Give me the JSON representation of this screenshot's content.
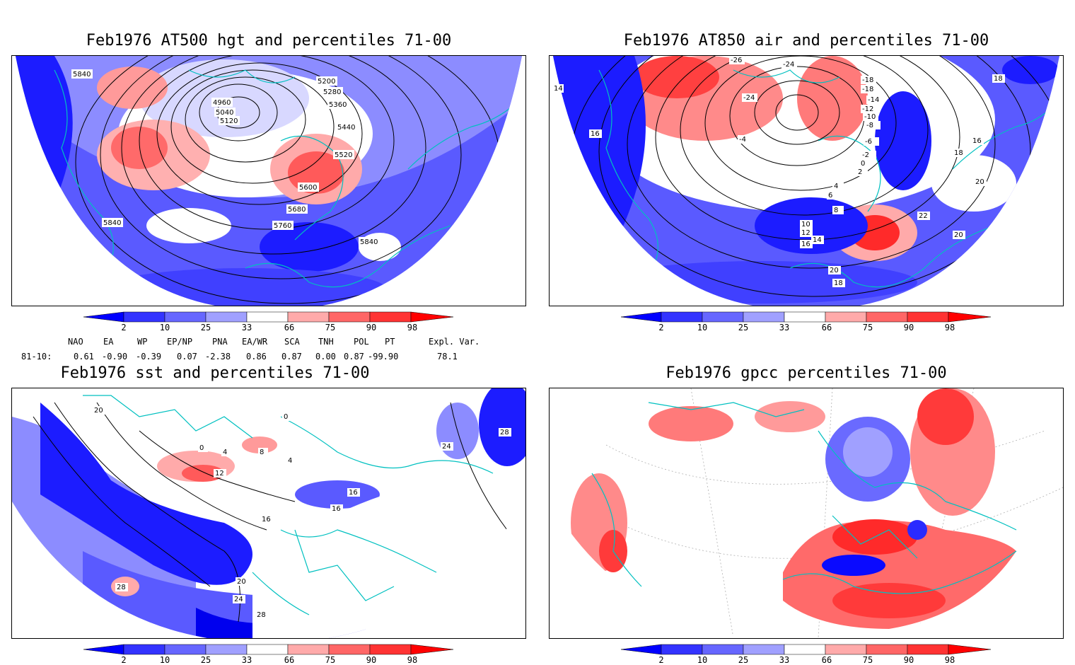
{
  "panels": [
    {
      "id": "tl",
      "title": "Feb1976 AT500 hgt and percentiles 71-00",
      "contour_labels": [
        "5840",
        "4960",
        "5040",
        "5120",
        "5200",
        "5280",
        "5360",
        "5440",
        "5520",
        "5600",
        "5680",
        "5760",
        "5840",
        "5840",
        "5840"
      ]
    },
    {
      "id": "tr",
      "title": "Feb1976 AT850 air and percentiles 71-00",
      "contour_labels": [
        "-26",
        "-24",
        "-24",
        "-18",
        "-18",
        "-14",
        "-12",
        "-10",
        "-8",
        "-6",
        "-4",
        "-2",
        "0",
        "2",
        "4",
        "6",
        "8",
        "10",
        "12",
        "14",
        "16",
        "18",
        "18",
        "16",
        "20",
        "22",
        "20",
        "20",
        "18",
        "14",
        "16"
      ]
    },
    {
      "id": "bl",
      "title": "Feb1976 sst and percentiles 71-00",
      "contour_labels": [
        "20",
        "0",
        "4",
        "8",
        "12",
        "16",
        "16",
        "16",
        "20",
        "24",
        "28",
        "28",
        "28",
        "24",
        "4",
        "0"
      ]
    },
    {
      "id": "br",
      "title": "Feb1976 gpcc percentiles 71-00",
      "contour_labels": []
    }
  ],
  "colorbar": {
    "labels": [
      "2",
      "10",
      "25",
      "33",
      "66",
      "75",
      "90",
      "98"
    ],
    "colors": [
      "#0000ff",
      "#3333ff",
      "#6666ff",
      "#a0a0ff",
      "#ffffff",
      "#ffaaaa",
      "#ff6666",
      "#ff3333",
      "#ff0000"
    ]
  },
  "indices": {
    "headers": [
      "NAO",
      "EA",
      "WP",
      "EP/NP",
      "PNA",
      "EA/WR",
      "SCA",
      "TNH",
      "POL",
      "PT",
      "Expl. Var."
    ],
    "row_label": "81-10:",
    "values": [
      "0.61",
      "-0.90",
      "-0.39",
      "0.07",
      "-2.38",
      "0.86",
      "0.87",
      "0.00",
      "0.87",
      "-99.90",
      "78.1"
    ]
  },
  "colors": {
    "coast": "#00c0c0",
    "contour": "#000000",
    "grid": "#b0b0b0"
  }
}
